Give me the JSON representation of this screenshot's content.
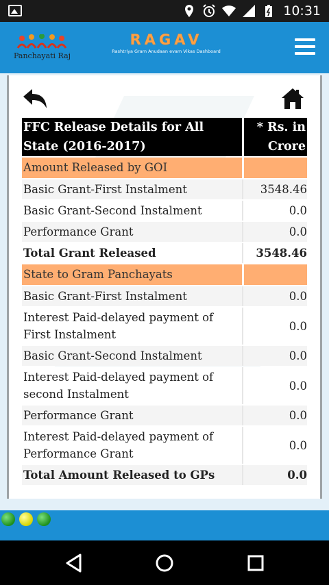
{
  "status_bar": {
    "time": "10:31",
    "icons": [
      "image-icon",
      "location-icon",
      "alarm-icon",
      "wifi-icon",
      "signal-icon",
      "battery-icon"
    ]
  },
  "header": {
    "logo_text": "Panchayati Raj",
    "brand_title": "RAGAV",
    "brand_subtitle": "Rashtriya Gram Anudaan evam Vikas Dashboard",
    "menu_icon": "hamburger-menu-icon"
  },
  "toolbar": {
    "back_icon": "back-arrow-icon",
    "home_icon": "home-icon"
  },
  "table": {
    "title": "FFC Release Details for All State (2016-2017)",
    "unit": "* Rs. in Crore",
    "sections": [
      {
        "heading": "Amount Released by GOI",
        "rows": [
          {
            "label": "Basic Grant-First Instalment",
            "value": "3548.46"
          },
          {
            "label": "Basic Grant-Second Instalment",
            "value": "0.0"
          },
          {
            "label": "Performance Grant",
            "value": "0.0"
          }
        ],
        "total": {
          "label": "Total Grant Released",
          "value": "3548.46"
        }
      },
      {
        "heading": "State to Gram Panchayats",
        "rows": [
          {
            "label": "Basic Grant-First Instalment",
            "value": "0.0"
          },
          {
            "label": "Interest Paid-delayed payment of First Instalment",
            "value": "0.0"
          },
          {
            "label": "Basic Grant-Second Instalment",
            "value": "0.0"
          },
          {
            "label": "Interest Paid-delayed payment of second Instalment",
            "value": "0.0"
          },
          {
            "label": "Performance Grant",
            "value": "0.0"
          },
          {
            "label": "Interest Paid-delayed payment of Performance Grant",
            "value": "0.0"
          }
        ],
        "total": {
          "label": "Total Amount Released to GPs",
          "value": "0.0"
        }
      }
    ]
  },
  "colors": {
    "header_blue": "#1c8fd4",
    "section_orange": "#ffae72",
    "brand_orange": "#ffa043"
  }
}
